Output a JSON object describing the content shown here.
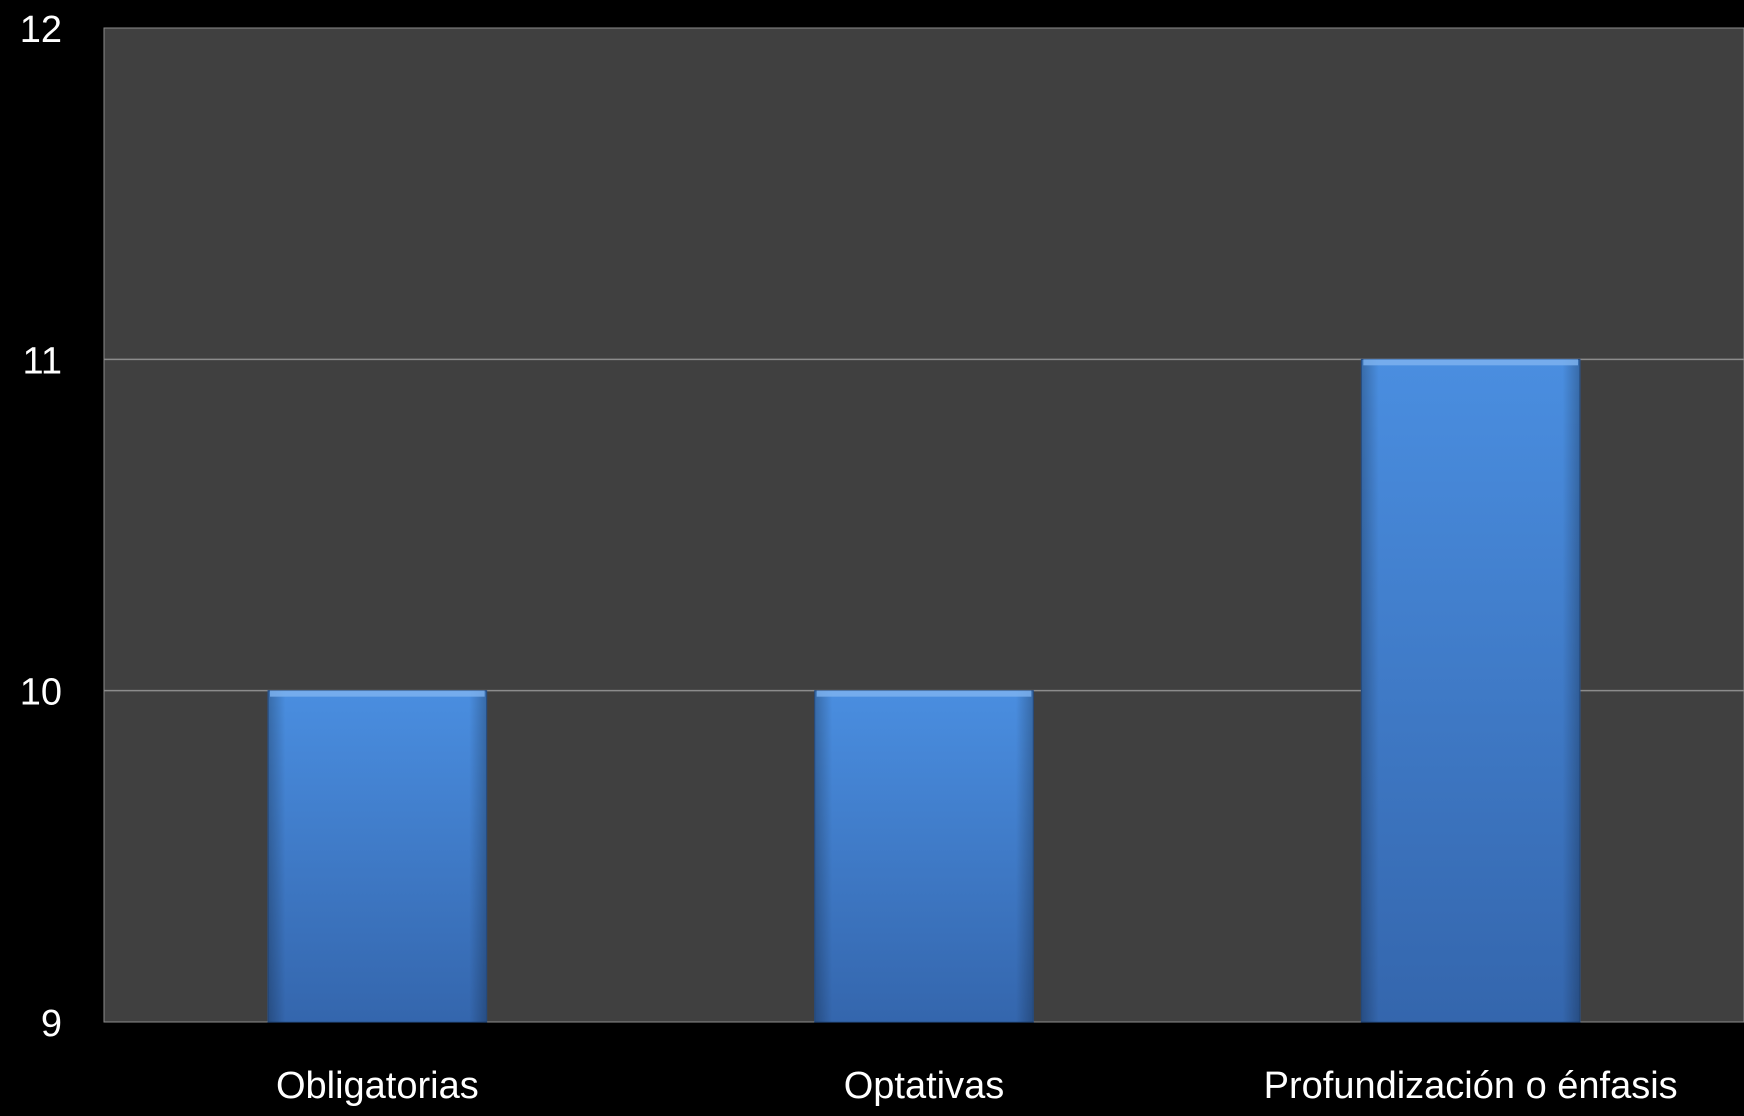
{
  "chart_data": {
    "type": "bar",
    "categories": [
      "Obligatorias",
      "Optativas",
      "Profundización o énfasis"
    ],
    "values": [
      10,
      10,
      11
    ],
    "title": "",
    "xlabel": "",
    "ylabel": "",
    "ylim": [
      9,
      12
    ],
    "yticks": [
      "9",
      "10",
      "11",
      "12"
    ],
    "grid": true,
    "legend": "none",
    "colors": {
      "background": "#000000",
      "plot_area": "#404040",
      "gridline": "#8c8c8c",
      "bar_top": "#4a8ee0",
      "bar_bottom": "#3466ad",
      "bar_edge": "#2a5590",
      "text": "#ffffff"
    }
  }
}
